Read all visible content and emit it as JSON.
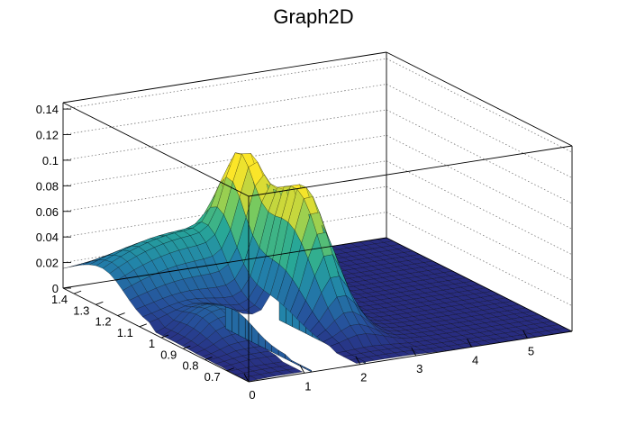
{
  "chart_data": {
    "type": "surface",
    "title": "Graph2D",
    "x_ticks": [
      "0",
      "1",
      "2",
      "3",
      "4",
      "5"
    ],
    "y_ticks": [
      "1.4",
      "1.3",
      "1.2",
      "1.1",
      "1",
      "0.9",
      "0.8",
      "0.7"
    ],
    "z_ticks": [
      "0",
      "0.02",
      "0.04",
      "0.06",
      "0.08",
      "0.1",
      "0.12",
      "0.14"
    ],
    "x_range": [
      0,
      5.8
    ],
    "y_range": [
      0.6,
      1.45
    ],
    "z_range": [
      0,
      0.145
    ],
    "grid": true,
    "colormap": "viridis",
    "peak": {
      "x": 2.5,
      "y": 1.0,
      "z": 0.1
    },
    "ridge_height": 0.045,
    "gap_x_range": [
      1.0,
      2.0
    ]
  }
}
